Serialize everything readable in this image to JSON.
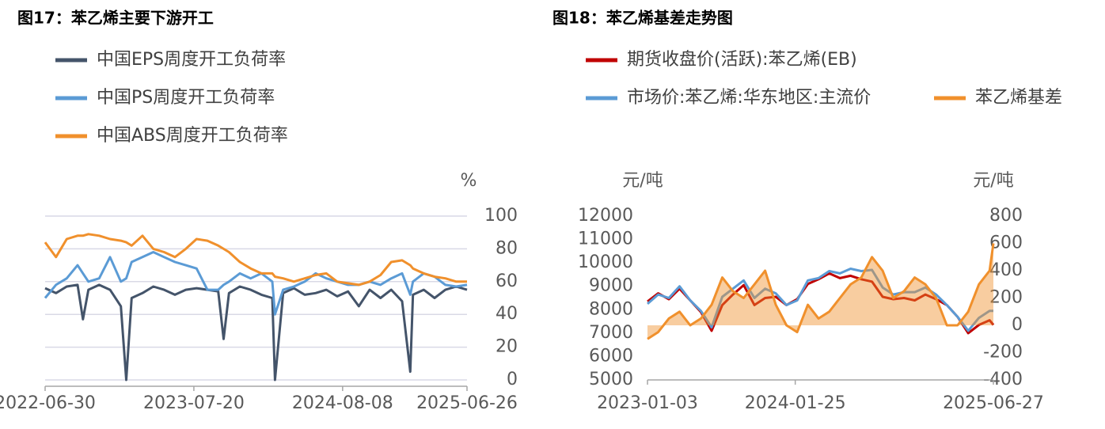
{
  "chart_data": [
    {
      "type": "line",
      "title": "图17：苯乙烯主要下游开工",
      "y_label": "%",
      "y_axis_side": "right",
      "grid": true,
      "x": [
        "2022-06-30",
        "2022-07-28",
        "2022-08-25",
        "2022-09-22",
        "2022-10-06",
        "2022-10-20",
        "2022-11-17",
        "2022-12-15",
        "2023-01-12",
        "2023-01-26",
        "2023-02-09",
        "2023-03-09",
        "2023-04-06",
        "2023-05-04",
        "2023-06-01",
        "2023-06-29",
        "2023-07-27",
        "2023-08-24",
        "2023-09-21",
        "2023-10-05",
        "2023-10-19",
        "2023-11-16",
        "2023-12-14",
        "2024-01-11",
        "2024-02-08",
        "2024-02-15",
        "2024-03-07",
        "2024-04-04",
        "2024-05-02",
        "2024-05-30",
        "2024-06-27",
        "2024-07-25",
        "2024-08-22",
        "2024-09-19",
        "2024-10-17",
        "2024-11-14",
        "2024-12-12",
        "2025-01-09",
        "2025-01-30",
        "2025-02-06",
        "2025-03-06",
        "2025-04-03",
        "2025-05-01",
        "2025-05-29",
        "2025-06-26"
      ],
      "xlim": [
        "2022-06-30",
        "2025-06-26"
      ],
      "xticks": [
        "2022-06-30",
        "2023-07-20",
        "2024-08-08",
        "2025-06-26"
      ],
      "ylim": [
        0,
        100
      ],
      "yticks": [
        0,
        20,
        40,
        60,
        80,
        100
      ],
      "series": [
        {
          "name": "中国EPS周度开工负荷率",
          "color": "#44546a",
          "values": [
            56,
            53,
            57,
            58,
            37,
            55,
            58,
            55,
            45,
            0,
            50,
            53,
            57,
            55,
            52,
            55,
            56,
            55,
            54,
            25,
            53,
            57,
            55,
            52,
            50,
            0,
            53,
            56,
            52,
            53,
            55,
            51,
            54,
            45,
            55,
            50,
            55,
            48,
            5,
            52,
            55,
            50,
            55,
            57,
            55
          ]
        },
        {
          "name": "中国PS周度开工负荷率",
          "color": "#5b9bd5",
          "values": [
            50,
            58,
            62,
            70,
            65,
            60,
            62,
            75,
            60,
            62,
            72,
            75,
            78,
            75,
            72,
            70,
            68,
            55,
            55,
            58,
            60,
            65,
            62,
            65,
            60,
            40,
            55,
            57,
            60,
            65,
            62,
            60,
            58,
            58,
            60,
            58,
            62,
            65,
            52,
            60,
            65,
            63,
            58,
            57,
            58
          ]
        },
        {
          "name": "中国ABS周度开工负荷率",
          "color": "#f0902c",
          "values": [
            84,
            75,
            86,
            88,
            88,
            89,
            88,
            86,
            85,
            84,
            82,
            88,
            80,
            78,
            75,
            80,
            86,
            85,
            82,
            80,
            78,
            72,
            68,
            65,
            65,
            63,
            62,
            60,
            62,
            64,
            65,
            60,
            59,
            58,
            60,
            64,
            72,
            73,
            70,
            68,
            65,
            63,
            62,
            60,
            60
          ]
        }
      ]
    },
    {
      "type": "line",
      "title": "图18：苯乙烯基差走势图",
      "y_label": "元/吨",
      "y2_label": "元/吨",
      "grid": false,
      "x": [
        "2023-01-03",
        "2023-01-31",
        "2023-02-28",
        "2023-03-28",
        "2023-04-25",
        "2023-05-23",
        "2023-06-20",
        "2023-07-18",
        "2023-08-15",
        "2023-09-12",
        "2023-10-10",
        "2023-11-07",
        "2023-12-05",
        "2024-01-02",
        "2024-01-30",
        "2024-02-27",
        "2024-03-26",
        "2024-04-23",
        "2024-05-21",
        "2024-06-18",
        "2024-07-16",
        "2024-08-13",
        "2024-09-10",
        "2024-10-08",
        "2024-11-05",
        "2024-12-03",
        "2024-12-31",
        "2025-01-28",
        "2025-02-25",
        "2025-03-25",
        "2025-04-22",
        "2025-05-20",
        "2025-06-17",
        "2025-06-27"
      ],
      "xlim": [
        "2023-01-03",
        "2025-06-27"
      ],
      "xticks": [
        "2023-01-03",
        "2024-01-25",
        "2025-06-27"
      ],
      "ylim": [
        5000,
        12000
      ],
      "yticks": [
        5000,
        6000,
        7000,
        8000,
        9000,
        10000,
        11000,
        12000
      ],
      "y2lim": [
        -400,
        800
      ],
      "y2ticks": [
        -400,
        -200,
        0,
        200,
        400,
        600,
        800
      ],
      "series": [
        {
          "name": "期货收盘价(活跃):苯乙烯(EB)",
          "color": "#c00000",
          "values": [
            8350,
            8700,
            8450,
            8900,
            8400,
            7900,
            7100,
            8200,
            8650,
            9050,
            8200,
            8500,
            8550,
            8200,
            8450,
            9100,
            9300,
            9550,
            9350,
            9450,
            9300,
            9200,
            8550,
            8450,
            8500,
            8400,
            8650,
            8450,
            8200,
            7700,
            7000,
            7350,
            7550,
            7350
          ]
        },
        {
          "name": "市场价:苯乙烯:华东地区:主流价",
          "color": "#5b9bd5",
          "values": [
            8250,
            8650,
            8500,
            9000,
            8400,
            7950,
            7250,
            8550,
            8900,
            9250,
            8500,
            8900,
            8700,
            8200,
            8400,
            9250,
            9350,
            9650,
            9550,
            9750,
            9650,
            9700,
            8950,
            8650,
            8750,
            8750,
            8950,
            8650,
            8200,
            7700,
            7100,
            7650,
            7950,
            7950
          ]
        },
        {
          "name": "苯乙烯基差",
          "color": "#f0902c",
          "type": "area",
          "axis": "y2",
          "values": [
            -100,
            -50,
            50,
            100,
            0,
            50,
            150,
            350,
            250,
            200,
            300,
            400,
            150,
            0,
            -50,
            150,
            50,
            100,
            200,
            300,
            350,
            500,
            400,
            200,
            250,
            350,
            300,
            200,
            0,
            0,
            100,
            300,
            400,
            600
          ]
        }
      ]
    }
  ]
}
